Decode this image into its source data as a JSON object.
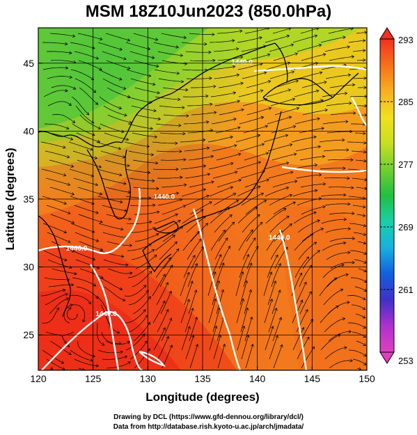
{
  "title": "MSM 18Z10Jun2023 (850.0hPa)",
  "footer": {
    "line1": "Drawing by DCL (https://www.gfd-dennou.org/library/dcl/)",
    "line2": "Data from http://database.rish.kyoto-u.ac.jp/arch/jmadata/"
  },
  "map": {
    "xlabel": "Longitude (degrees)",
    "ylabel": "Latitude  (degrees)",
    "xlim": [
      120,
      150
    ],
    "ylim": [
      22.4,
      47.6
    ],
    "xticks": [
      120,
      125,
      130,
      135,
      140,
      145,
      150
    ],
    "yticks": [
      25,
      30,
      35,
      40,
      45
    ],
    "grid": true,
    "field": "temperature",
    "overlay": [
      "streamlines",
      "geopotential-contours",
      "coastlines"
    ],
    "contour_labels": [
      {
        "text": "1440.0",
        "lon": 123.5,
        "lat": 31.2
      },
      {
        "text": "1440.0",
        "lon": 138.6,
        "lat": 44.9
      },
      {
        "text": "1440.0",
        "lon": 142.0,
        "lat": 32.0
      },
      {
        "text": "1440.0",
        "lon": 131.5,
        "lat": 35.0
      },
      {
        "text": "1440.0",
        "lon": 126.2,
        "lat": 26.4
      }
    ]
  },
  "colorbar": {
    "ticks": [
      293,
      285,
      277,
      269,
      261,
      253
    ],
    "min": 253,
    "max": 293,
    "colors": [
      "#e040c0",
      "#b030d0",
      "#4030c8",
      "#1060e0",
      "#18b0e0",
      "#18d0a8",
      "#20c040",
      "#70d030",
      "#c8e020",
      "#f0e020",
      "#f8b020",
      "#f87018",
      "#f03020"
    ]
  }
}
